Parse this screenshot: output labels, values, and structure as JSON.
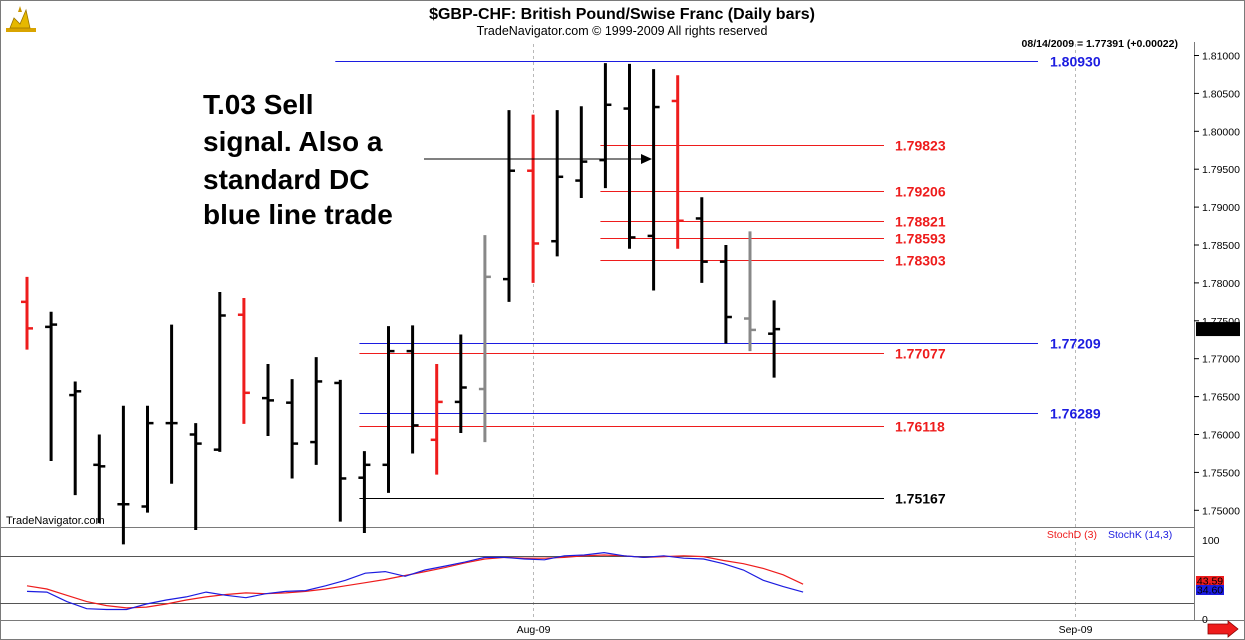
{
  "header": {
    "title": "$GBP-CHF:  British Pound/Swise Franc  (Daily bars)",
    "subtitle": "TradeNavigator.com © 1999-2009 All rights reserved",
    "quote": "08/14/2009 = 1.77391 (+0.00022)",
    "watermark": "TradeNavigator.com"
  },
  "annotation": {
    "lines": [
      "T.03 Sell",
      "signal. Also a",
      "standard DC",
      "blue line trade"
    ]
  },
  "chart_data": [
    {
      "type": "ohlc",
      "title": "$GBP-CHF:  British Pound/Swise Franc  (Daily bars)",
      "ylim": [
        1.7465,
        1.8115
      ],
      "y_ticks": [
        "1.81000",
        "1.80500",
        "1.80000",
        "1.79500",
        "1.79000",
        "1.78500",
        "1.78000",
        "1.77500",
        "1.77000",
        "1.76500",
        "1.76000",
        "1.75500",
        "1.75000"
      ],
      "y_tick_values": [
        1.81,
        1.805,
        1.8,
        1.795,
        1.79,
        1.785,
        1.78,
        1.775,
        1.77,
        1.765,
        1.76,
        1.755,
        1.75
      ],
      "x_labels": [
        {
          "label": "Aug-09",
          "bar": 21
        },
        {
          "label": "Sep-09",
          "bar": 43.5
        }
      ],
      "bars_total": 45,
      "last_price_label": "1.77391",
      "bars": [
        {
          "o": 1.7775,
          "h": 1.7808,
          "l": 1.7712,
          "c": 1.774,
          "color": "#ee1c1c"
        },
        {
          "o": 1.7742,
          "h": 1.7762,
          "l": 1.7565,
          "c": 1.7745,
          "color": "#000000"
        },
        {
          "o": 1.7652,
          "h": 1.767,
          "l": 1.752,
          "c": 1.7657,
          "color": "#000000"
        },
        {
          "o": 1.756,
          "h": 1.76,
          "l": 1.7483,
          "c": 1.7558,
          "color": "#000000"
        },
        {
          "o": 1.7508,
          "h": 1.7638,
          "l": 1.7455,
          "c": 1.7508,
          "color": "#000000"
        },
        {
          "o": 1.7505,
          "h": 1.7638,
          "l": 1.7497,
          "c": 1.7615,
          "color": "#000000"
        },
        {
          "o": 1.7615,
          "h": 1.7745,
          "l": 1.7535,
          "c": 1.7615,
          "color": "#000000"
        },
        {
          "o": 1.76,
          "h": 1.7615,
          "l": 1.7474,
          "c": 1.7588,
          "color": "#000000"
        },
        {
          "o": 1.758,
          "h": 1.7788,
          "l": 1.7577,
          "c": 1.7757,
          "color": "#000000"
        },
        {
          "o": 1.7758,
          "h": 1.778,
          "l": 1.7614,
          "c": 1.7655,
          "color": "#ee1c1c"
        },
        {
          "o": 1.7648,
          "h": 1.7693,
          "l": 1.7598,
          "c": 1.7645,
          "color": "#000000"
        },
        {
          "o": 1.7642,
          "h": 1.7673,
          "l": 1.7542,
          "c": 1.7588,
          "color": "#000000"
        },
        {
          "o": 1.759,
          "h": 1.7702,
          "l": 1.756,
          "c": 1.767,
          "color": "#000000"
        },
        {
          "o": 1.7668,
          "h": 1.7672,
          "l": 1.7485,
          "c": 1.7542,
          "color": "#000000"
        },
        {
          "o": 1.7543,
          "h": 1.7578,
          "l": 1.747,
          "c": 1.756,
          "color": "#000000"
        },
        {
          "o": 1.756,
          "h": 1.7743,
          "l": 1.7523,
          "c": 1.771,
          "color": "#000000"
        },
        {
          "o": 1.771,
          "h": 1.7744,
          "l": 1.7575,
          "c": 1.7612,
          "color": "#000000"
        },
        {
          "o": 1.7593,
          "h": 1.7693,
          "l": 1.7547,
          "c": 1.7643,
          "color": "#ee1c1c"
        },
        {
          "o": 1.7643,
          "h": 1.7732,
          "l": 1.7602,
          "c": 1.7662,
          "color": "#000000"
        },
        {
          "o": 1.766,
          "h": 1.7863,
          "l": 1.759,
          "c": 1.7808,
          "color": "#888888"
        },
        {
          "o": 1.7805,
          "h": 1.8028,
          "l": 1.7775,
          "c": 1.7948,
          "color": "#000000"
        },
        {
          "o": 1.7948,
          "h": 1.8022,
          "l": 1.78,
          "c": 1.7852,
          "color": "#ee1c1c"
        },
        {
          "o": 1.7855,
          "h": 1.8028,
          "l": 1.7835,
          "c": 1.794,
          "color": "#000000"
        },
        {
          "o": 1.7935,
          "h": 1.8033,
          "l": 1.7912,
          "c": 1.796,
          "color": "#000000"
        },
        {
          "o": 1.7962,
          "h": 1.809,
          "l": 1.7925,
          "c": 1.8035,
          "color": "#000000"
        },
        {
          "o": 1.803,
          "h": 1.8089,
          "l": 1.7845,
          "c": 1.786,
          "color": "#000000"
        },
        {
          "o": 1.7862,
          "h": 1.8082,
          "l": 1.779,
          "c": 1.8032,
          "color": "#000000"
        },
        {
          "o": 1.804,
          "h": 1.8074,
          "l": 1.7845,
          "c": 1.7882,
          "color": "#ee1c1c"
        },
        {
          "o": 1.7885,
          "h": 1.7913,
          "l": 1.78,
          "c": 1.7828,
          "color": "#000000"
        },
        {
          "o": 1.7828,
          "h": 1.785,
          "l": 1.772,
          "c": 1.7755,
          "color": "#000000"
        },
        {
          "o": 1.7753,
          "h": 1.7868,
          "l": 1.771,
          "c": 1.7738,
          "color": "#888888"
        },
        {
          "o": 1.7733,
          "h": 1.7777,
          "l": 1.7675,
          "c": 1.7739,
          "color": "#000000"
        }
      ],
      "levels": [
        {
          "value": "1.80930",
          "color": "#1c1ce0",
          "x_from_bar": 13
        },
        {
          "value": "1.79823",
          "color": "#ee1c1c",
          "x_from_bar": 24
        },
        {
          "value": "1.79206",
          "color": "#ee1c1c",
          "x_from_bar": 24
        },
        {
          "value": "1.78821",
          "color": "#ee1c1c",
          "x_from_bar": 24
        },
        {
          "value": "1.78593",
          "color": "#ee1c1c",
          "x_from_bar": 24
        },
        {
          "value": "1.78303",
          "color": "#ee1c1c",
          "x_from_bar": 24
        },
        {
          "value": "1.77209",
          "color": "#1c1ce0",
          "x_from_bar": 14
        },
        {
          "value": "1.77077",
          "color": "#ee1c1c",
          "x_from_bar": 14
        },
        {
          "value": "1.76289",
          "color": "#1c1ce0",
          "x_from_bar": 14
        },
        {
          "value": "1.76118",
          "color": "#ee1c1c",
          "x_from_bar": 14
        },
        {
          "value": "1.75167",
          "color": "#000000",
          "x_from_bar": 14
        }
      ]
    },
    {
      "type": "line",
      "ylim": [
        0,
        100
      ],
      "y_ticks": [
        "100",
        "0"
      ],
      "y_tick_values": [
        100,
        0
      ],
      "reference_lines": [
        80,
        20
      ],
      "series": [
        {
          "name": "StochD (3)",
          "color": "#ee1c1c",
          "last_label": "43.59",
          "values": [
            42,
            38,
            30,
            22,
            17,
            14,
            15,
            19,
            24,
            28,
            31,
            33,
            32,
            33,
            35,
            38,
            42,
            46,
            50,
            55,
            60,
            65,
            71,
            76,
            78,
            77,
            77,
            78,
            80,
            81,
            80,
            78,
            79,
            80,
            79,
            74,
            70,
            64,
            56,
            44
          ]
        },
        {
          "name": "StochK (14,3)",
          "color": "#1c1ce0",
          "last_label": "34.60",
          "values": [
            35,
            34,
            22,
            13,
            12,
            12,
            19,
            24,
            28,
            34,
            30,
            27,
            32,
            35,
            36,
            42,
            49,
            58,
            60,
            54,
            62,
            67,
            72,
            78,
            78,
            76,
            75,
            80,
            81,
            84,
            80,
            78,
            80,
            77,
            76,
            70,
            62,
            49,
            41,
            34
          ]
        }
      ]
    }
  ]
}
